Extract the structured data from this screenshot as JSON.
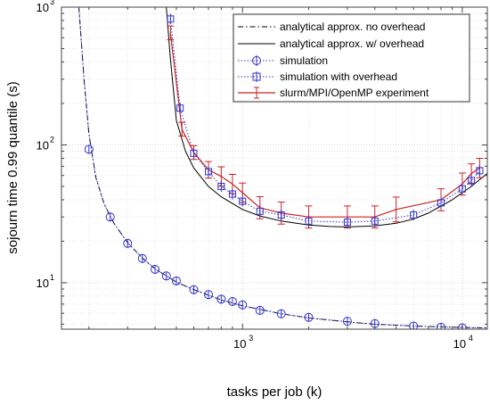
{
  "chart_data": {
    "type": "line",
    "title": "",
    "xlabel": "tasks per job (k)",
    "ylabel": "sojourn time 0.99 quantile (s)",
    "xscale": "log",
    "yscale": "log",
    "xlim": [
      150,
      13000
    ],
    "ylim": [
      4.6,
      1000
    ],
    "grid": true,
    "legend_position": "top-right",
    "x_tick_labels": [
      {
        "value": 1000,
        "base": "10",
        "exp": "3"
      },
      {
        "value": 10000,
        "base": "10",
        "exp": "4"
      }
    ],
    "y_tick_labels": [
      {
        "value": 10,
        "base": "10",
        "exp": "1"
      },
      {
        "value": 100,
        "base": "10",
        "exp": "2"
      },
      {
        "value": 1000,
        "base": "10",
        "exp": "3"
      }
    ],
    "series": [
      {
        "name": "analytical approx. no overhead",
        "style": "dashdot",
        "color": "#000000",
        "x": [
          180,
          190,
          200,
          215,
          235,
          260,
          300,
          350,
          400,
          500,
          600,
          800,
          1000,
          1500,
          2000,
          3000,
          4000,
          6000,
          8000,
          10000,
          13000
        ],
        "y": [
          1000,
          300,
          120,
          58,
          37,
          27,
          19.5,
          15.1,
          12.6,
          10.1,
          8.9,
          7.5,
          6.8,
          5.95,
          5.55,
          5.2,
          5.0,
          4.85,
          4.78,
          4.74,
          4.7
        ]
      },
      {
        "name": "analytical approx. w/ overhead",
        "style": "solid",
        "color": "#000000",
        "x": [
          450,
          470,
          500,
          550,
          600,
          700,
          800,
          1000,
          1200,
          1500,
          2000,
          2500,
          3000,
          4000,
          5000,
          6000,
          7000,
          8000,
          9000,
          10000,
          11000,
          12000,
          13000
        ],
        "y": [
          1000,
          420,
          150,
          90,
          68,
          50,
          42,
          34,
          30.5,
          28,
          26.2,
          25.6,
          25.4,
          25.8,
          27,
          29,
          32,
          36,
          40,
          45,
          50,
          56,
          62
        ]
      },
      {
        "name": "simulation",
        "style": "dotted",
        "marker": "circle",
        "color": "#3333cc",
        "line_x": [
          180,
          190,
          200,
          215,
          235,
          260,
          300,
          350,
          400,
          500,
          600,
          800,
          1000,
          1500,
          2000,
          3000,
          4000,
          6000,
          8000,
          10000,
          13000
        ],
        "line_y": [
          1000,
          300,
          120,
          58,
          37,
          27,
          19.5,
          15.1,
          12.6,
          10.1,
          8.9,
          7.5,
          6.8,
          5.95,
          5.55,
          5.2,
          5.0,
          4.85,
          4.78,
          4.74,
          4.7
        ],
        "x": [
          200,
          250,
          300,
          350,
          400,
          450,
          500,
          600,
          700,
          800,
          900,
          1000,
          1200,
          1500,
          2000,
          3000,
          4000,
          6000,
          8000,
          10000
        ],
        "y": [
          93,
          30,
          19.3,
          15,
          12.5,
          11.2,
          10.3,
          8.9,
          8.2,
          7.6,
          7.3,
          6.9,
          6.3,
          5.95,
          5.6,
          5.25,
          5.05,
          4.85,
          4.75,
          4.7
        ]
      },
      {
        "name": "simulation with overhead",
        "style": "dotted",
        "marker": "square",
        "color": "#3333cc",
        "x": [
          470,
          520,
          600,
          700,
          800,
          900,
          1000,
          1200,
          1500,
          2000,
          3000,
          4000,
          6000,
          8000,
          10000,
          11000,
          12000
        ],
        "y": [
          820,
          185,
          87,
          64,
          50,
          44,
          39,
          33,
          31,
          28,
          27.5,
          28,
          31,
          38,
          48,
          55,
          65
        ]
      },
      {
        "name": "slurm/MPI/OpenMP experiment",
        "style": "solid",
        "marker": "errorbar",
        "color": "#cc2222",
        "x": [
          470,
          530,
          600,
          700,
          800,
          900,
          1000,
          1200,
          1500,
          2000,
          3000,
          4000,
          5000,
          8000,
          10000,
          11000,
          12000
        ],
        "y": [
          650,
          130,
          88,
          66,
          59,
          52,
          45,
          35,
          32,
          30,
          30,
          30,
          34,
          40,
          52,
          62,
          68
        ],
        "err": [
          0.05,
          0.05,
          0.05,
          0.06,
          0.07,
          0.07,
          0.07,
          0.08,
          0.08,
          0.08,
          0.08,
          0.08,
          0.09,
          0.08,
          0.08,
          0.07,
          0.07
        ]
      }
    ]
  }
}
